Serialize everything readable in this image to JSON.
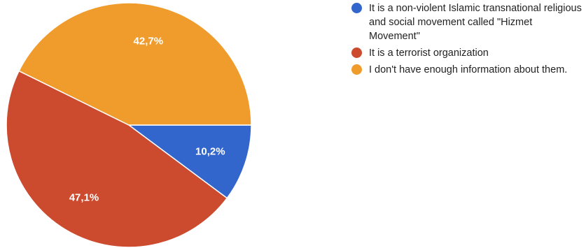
{
  "chart_data": {
    "type": "pie",
    "slices": [
      {
        "label": "It is a non-violent Islamic transnational religious and social movement called \"Hizmet Movement\"",
        "value": 10.2,
        "display": "10,2%",
        "color": "#3366cc"
      },
      {
        "label": "It is a terrorist organization",
        "value": 47.1,
        "display": "47,1%",
        "color": "#cc4a2e"
      },
      {
        "label": "I don't have enough information about them.",
        "value": 42.7,
        "display": "42,7%",
        "color": "#f09c2c"
      }
    ],
    "start_angle": "3 o'clock",
    "direction": "clockwise",
    "legend_position": "right"
  }
}
